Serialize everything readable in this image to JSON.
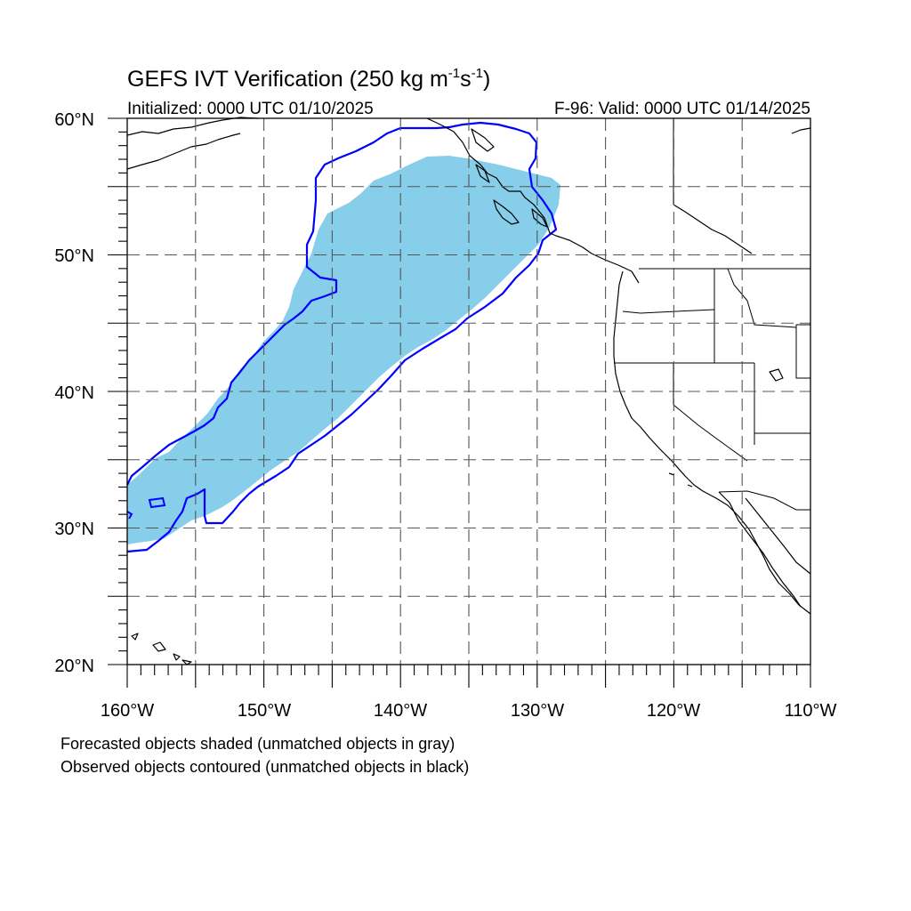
{
  "header": {
    "title_main": "GEFS IVT Verification (250 kg m",
    "title_sup1": "-1",
    "title_mid": "s",
    "title_sup2": "-1",
    "title_end": ")",
    "initialized": "Initialized: 0000 UTC 01/10/2025",
    "valid": "F-96: Valid: 0000 UTC 01/14/2025"
  },
  "map": {
    "lon_range": [
      -160,
      -110
    ],
    "lat_range": [
      20,
      60
    ],
    "grid_step_deg": 5,
    "lat_labels": [
      "20°N",
      "30°N",
      "40°N",
      "50°N",
      "60°N"
    ],
    "lon_labels": [
      "160°W",
      "150°W",
      "140°W",
      "130°W",
      "120°W",
      "110°W"
    ],
    "forecast_fill_color": "#87ceeb",
    "observed_contour_color": "#0000ff",
    "coastline_color": "#000000"
  },
  "legend": {
    "line1": "Forecasted objects shaded (unmatched objects in gray)",
    "line2": "Observed objects contoured (unmatched objects in black)"
  }
}
